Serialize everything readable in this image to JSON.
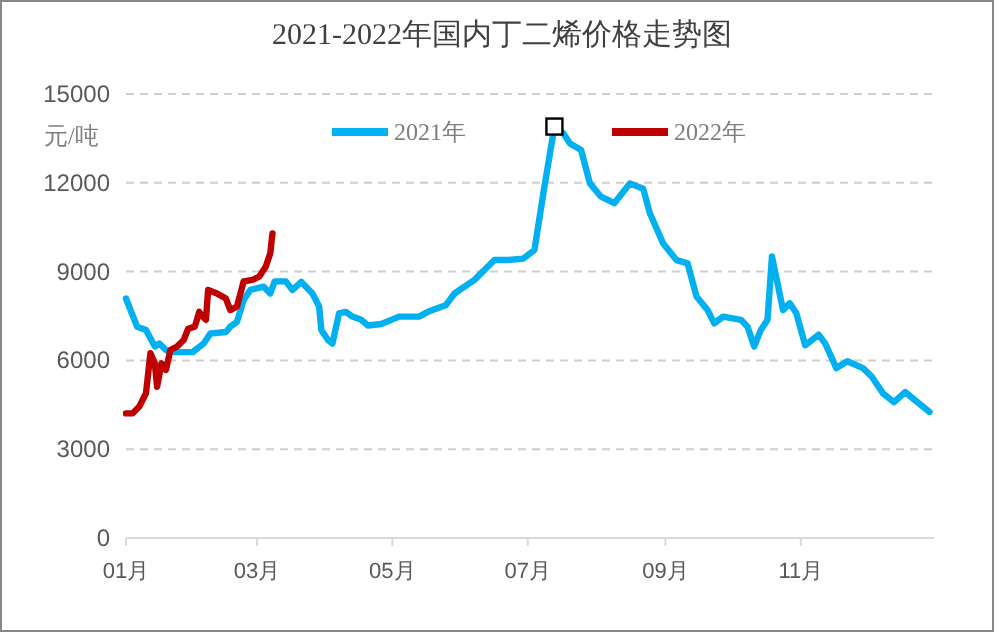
{
  "chart_data": {
    "type": "line",
    "title": "2021-2022年国内丁二烯价格走势图",
    "ylabel": "元/吨",
    "xlim": [
      "--01-01",
      "--12-31"
    ],
    "xticks": [
      {
        "value": "--01-01",
        "label": "01月"
      },
      {
        "value": "--03-01",
        "label": "03月"
      },
      {
        "value": "--05-01",
        "label": "05月"
      },
      {
        "value": "--07-01",
        "label": "07月"
      },
      {
        "value": "--09-01",
        "label": "09月"
      },
      {
        "value": "--11-01",
        "label": "11月"
      }
    ],
    "ylim": [
      0,
      15000
    ],
    "yticks": [
      0,
      3000,
      6000,
      9000,
      12000,
      15000
    ],
    "grid": "y",
    "legend": "top",
    "series": [
      {
        "name": "2021年",
        "color": "#00b0f0",
        "x": [
          "--01-01",
          "--01-06",
          "--01-10",
          "--01-14",
          "--01-16",
          "--01-19",
          "--01-23",
          "--01-31",
          "--02-05",
          "--02-08",
          "--02-15",
          "--02-17",
          "--02-20",
          "--02-23",
          "--02-26",
          "--03-04",
          "--03-07",
          "--03-09",
          "--03-14",
          "--03-17",
          "--03-21",
          "--03-26",
          "--03-29",
          "--03-30",
          "--04-02",
          "--04-04",
          "--04-07",
          "--04-10",
          "--04-13",
          "--04-17",
          "--04-20",
          "--04-26",
          "--05-04",
          "--05-13",
          "--05-17",
          "--05-25",
          "--05-29",
          "--06-07",
          "--06-16",
          "--06-22",
          "--06-29",
          "--07-04",
          "--07-08",
          "--07-13",
          "--07-17",
          "--07-20",
          "--07-25",
          "--07-29",
          "--08-03",
          "--08-09",
          "--08-16",
          "--08-22",
          "--08-25",
          "--08-31",
          "--09-06",
          "--09-11",
          "--09-15",
          "--09-20",
          "--09-23",
          "--09-27",
          "--10-05",
          "--10-08",
          "--10-11",
          "--10-14",
          "--10-17",
          "--10-19",
          "--10-24",
          "--10-27",
          "--10-30",
          "--11-03",
          "--11-09",
          "--11-12",
          "--11-17",
          "--11-22",
          "--11-29",
          "--12-03",
          "--12-08",
          "--12-13",
          "--12-18",
          "--12-23",
          "--12-29"
        ],
        "values": [
          8090,
          7140,
          7030,
          6470,
          6570,
          6350,
          6280,
          6280,
          6570,
          6910,
          6960,
          7140,
          7300,
          8040,
          8380,
          8490,
          8260,
          8670,
          8670,
          8380,
          8650,
          8260,
          7820,
          7030,
          6690,
          6570,
          7590,
          7640,
          7480,
          7370,
          7180,
          7230,
          7480,
          7480,
          7640,
          7860,
          8260,
          8720,
          9390,
          9390,
          9440,
          9730,
          11640,
          13900,
          13670,
          13330,
          13110,
          11980,
          11530,
          11310,
          11980,
          11800,
          10970,
          9950,
          9390,
          9280,
          8160,
          7700,
          7250,
          7480,
          7370,
          7140,
          6470,
          7030,
          7370,
          9510,
          7700,
          7930,
          7590,
          6510,
          6870,
          6570,
          5740,
          5970,
          5740,
          5450,
          4890,
          4590,
          4930,
          4620,
          4260
        ]
      },
      {
        "name": "2022年",
        "color": "#c00000",
        "x": [
          "--01-01",
          "--01-04",
          "--01-07",
          "--01-10",
          "--01-12",
          "--01-14",
          "--01-15",
          "--01-17",
          "--01-19",
          "--01-21",
          "--01-24",
          "--01-27",
          "--01-29",
          "--02-01",
          "--02-03",
          "--02-04",
          "--02-06",
          "--02-07",
          "--02-11",
          "--02-15",
          "--02-17",
          "--02-20",
          "--02-23",
          "--02-27",
          "--03-02",
          "--03-05",
          "--03-07",
          "--03-08"
        ],
        "values": [
          4210,
          4210,
          4440,
          4890,
          6240,
          5900,
          5110,
          5900,
          5680,
          6350,
          6470,
          6690,
          7070,
          7140,
          7640,
          7520,
          7370,
          8380,
          8260,
          8090,
          7700,
          7820,
          8670,
          8720,
          8830,
          9170,
          9620,
          10290
        ]
      },
      {
        "type": "scatter",
        "marker": "square",
        "color": "#000000",
        "x": [
          "--07-13"
        ],
        "values": [
          13900
        ]
      }
    ]
  }
}
